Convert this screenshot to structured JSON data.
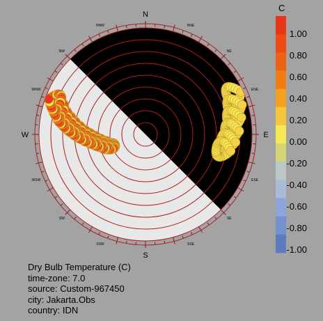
{
  "chart_data": {
    "type": "polar-scatter",
    "chart_kind": "sun path diagram",
    "compass": {
      "cardinals": [
        "N",
        "E",
        "S",
        "W"
      ],
      "intercardinals": [
        "NNE",
        "NE",
        "ENE",
        "ESE",
        "SE",
        "SSE",
        "SSW",
        "SW",
        "WSW",
        "WNW",
        "NW",
        "NNW"
      ]
    },
    "altitude_ring_step_deg": 10,
    "night_hemisphere": "north-east half (shaded black)",
    "legend": {
      "title": "C",
      "placement": "right",
      "ticks": [
        "1.00",
        "0.80",
        "0.60",
        "0.40",
        "0.20",
        "0.00",
        "-0.20",
        "-0.40",
        "-0.60",
        "-0.80",
        "-1.00"
      ],
      "colors": [
        "#e8361a",
        "#ea4c13",
        "#ee6214",
        "#f17d12",
        "#f4a11d",
        "#f5c53c",
        "#f6e754",
        "#d6d676",
        "#bdc7c9",
        "#a9bbd6",
        "#8ea5dc",
        "#7391cf",
        "#5d7bbf"
      ]
    },
    "series": [
      {
        "values_description": "hourly sun positions; orange/red = positive value (sun up east-to-west west half), yellow = zero",
        "hour_tracks_azimuth_deg": [
          251,
          256,
          260,
          264,
          267,
          270,
          273,
          276,
          279,
          282,
          286,
          290,
          66,
          73,
          80,
          88,
          95,
          101
        ],
        "value_on_tracks": [
          1,
          1,
          1,
          1,
          1,
          1,
          1,
          1,
          1,
          1,
          1,
          1,
          0,
          0,
          0,
          0,
          0,
          0
        ]
      }
    ]
  },
  "info": {
    "line1": "Dry Bulb Temperature (C)",
    "line2": "time-zone: 7.0",
    "line3": "source: Custom-967450",
    "line4": "city: Jakarta.Obs",
    "line5": "country: IDN"
  }
}
